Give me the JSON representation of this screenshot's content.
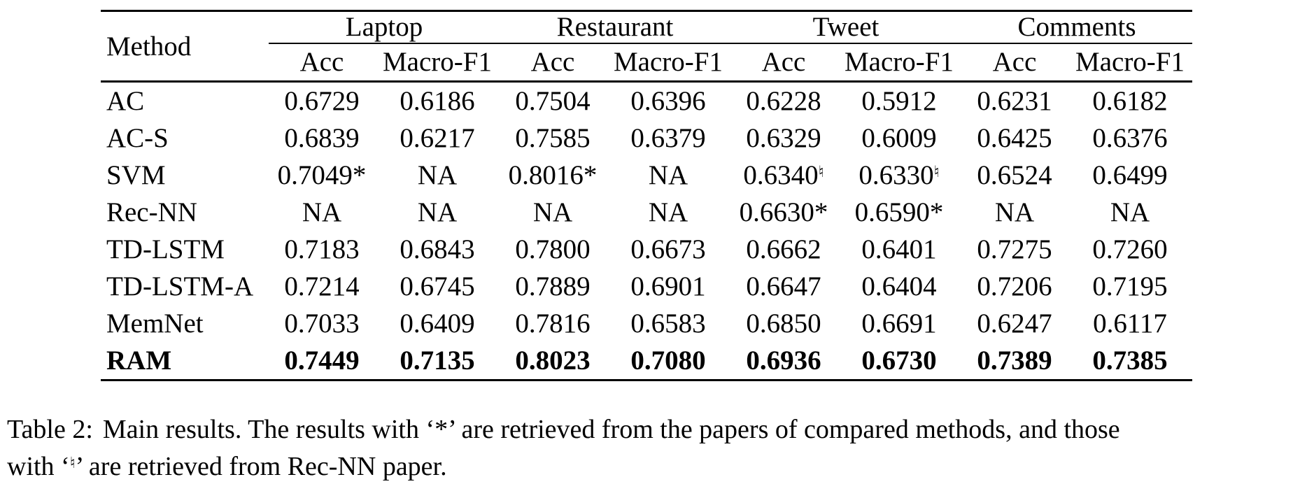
{
  "table": {
    "method_label": "Method",
    "groups": [
      "Laptop",
      "Restaurant",
      "Tweet",
      "Comments"
    ],
    "subheaders": [
      "Acc",
      "Macro-F1",
      "Acc",
      "Macro-F1",
      "Acc",
      "Macro-F1",
      "Acc",
      "Macro-F1"
    ],
    "rows": [
      {
        "method": "AC",
        "bold": false,
        "cells": [
          "0.6729",
          "0.6186",
          "0.7504",
          "0.6396",
          "0.6228",
          "0.5912",
          "0.6231",
          "0.6182"
        ]
      },
      {
        "method": "AC-S",
        "bold": false,
        "cells": [
          "0.6839",
          "0.6217",
          "0.7585",
          "0.6379",
          "0.6329",
          "0.6009",
          "0.6425",
          "0.6376"
        ]
      },
      {
        "method": "SVM",
        "bold": false,
        "cells": [
          "0.7049*",
          "NA",
          "0.8016*",
          "NA",
          {
            "text": "0.6340",
            "sup": "♮"
          },
          {
            "text": "0.6330",
            "sup": "♮"
          },
          "0.6524",
          "0.6499"
        ]
      },
      {
        "method": "Rec-NN",
        "bold": false,
        "cells": [
          "NA",
          "NA",
          "NA",
          "NA",
          "0.6630*",
          "0.6590*",
          "NA",
          "NA"
        ]
      },
      {
        "method": "TD-LSTM",
        "bold": false,
        "cells": [
          "0.7183",
          "0.6843",
          "0.7800",
          "0.6673",
          "0.6662",
          "0.6401",
          "0.7275",
          "0.7260"
        ]
      },
      {
        "method": "TD-LSTM-A",
        "bold": false,
        "cells": [
          "0.7214",
          "0.6745",
          "0.7889",
          "0.6901",
          "0.6647",
          "0.6404",
          "0.7206",
          "0.7195"
        ]
      },
      {
        "method": "MemNet",
        "bold": false,
        "cells": [
          "0.7033",
          "0.6409",
          "0.7816",
          "0.6583",
          "0.6850",
          "0.6691",
          "0.6247",
          "0.6117"
        ]
      },
      {
        "method": "RAM",
        "bold": true,
        "cells": [
          "0.7449",
          "0.7135",
          "0.8023",
          "0.7080",
          "0.6936",
          "0.6730",
          "0.7389",
          "0.7385"
        ]
      }
    ]
  },
  "caption": {
    "label": "Table 2:",
    "line1": "Main results. The results with ‘*’ are retrieved from the papers of compared methods, and those",
    "line2": {
      "before": "with ‘",
      "sup": "♮",
      "after": "’ are retrieved from Rec-NN paper."
    }
  }
}
